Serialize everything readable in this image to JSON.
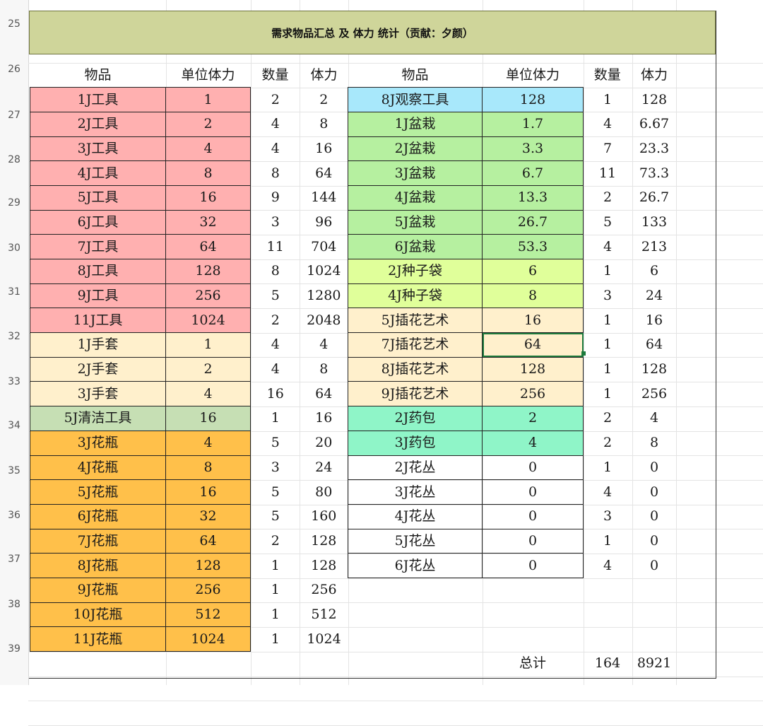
{
  "row_numbers": [
    "25",
    "26",
    "27",
    "28",
    "29",
    "30",
    "31",
    "32",
    "33",
    "34",
    "35",
    "36",
    "37",
    "38",
    "39"
  ],
  "banner_title": "需求物品汇总 及 体力 统计（贡献：夕颜）",
  "headers": [
    "物品",
    "单位体力",
    "数量",
    "体力",
    "物品",
    "单位体力",
    "数量",
    "体力"
  ],
  "colors": {
    "tool_red": "#ffb0b0",
    "glove_cream": "#fff0cc",
    "clean_green": "#c6dfb4",
    "vase_orange": "#ffc04a",
    "observe_blue": "#a8e8fb",
    "bonsai_green": "#b6f0a0",
    "seedbag_lime": "#e0ff9a",
    "flowerart_cream": "#fff0cc",
    "medicine_mint": "#8ff5c8",
    "banner_olive": "#cfd59a"
  },
  "left_rows": [
    {
      "name": "1J工具",
      "unit": "1",
      "qty": "2",
      "total": "2",
      "color": "tool_red"
    },
    {
      "name": "2J工具",
      "unit": "2",
      "qty": "4",
      "total": "8",
      "color": "tool_red"
    },
    {
      "name": "3J工具",
      "unit": "4",
      "qty": "4",
      "total": "16",
      "color": "tool_red"
    },
    {
      "name": "4J工具",
      "unit": "8",
      "qty": "8",
      "total": "64",
      "color": "tool_red"
    },
    {
      "name": "5J工具",
      "unit": "16",
      "qty": "9",
      "total": "144",
      "color": "tool_red"
    },
    {
      "name": "6J工具",
      "unit": "32",
      "qty": "3",
      "total": "96",
      "color": "tool_red"
    },
    {
      "name": "7J工具",
      "unit": "64",
      "qty": "11",
      "total": "704",
      "color": "tool_red"
    },
    {
      "name": "8J工具",
      "unit": "128",
      "qty": "8",
      "total": "1024",
      "color": "tool_red"
    },
    {
      "name": "9J工具",
      "unit": "256",
      "qty": "5",
      "total": "1280",
      "color": "tool_red"
    },
    {
      "name": "11J工具",
      "unit": "1024",
      "qty": "2",
      "total": "2048",
      "color": "tool_red"
    },
    {
      "name": "1J手套",
      "unit": "1",
      "qty": "4",
      "total": "4",
      "color": "glove_cream"
    },
    {
      "name": "2J手套",
      "unit": "2",
      "qty": "4",
      "total": "8",
      "color": "glove_cream"
    },
    {
      "name": "3J手套",
      "unit": "4",
      "qty": "16",
      "total": "64",
      "color": "glove_cream"
    },
    {
      "name": "5J清洁工具",
      "unit": "16",
      "qty": "1",
      "total": "16",
      "color": "clean_green"
    },
    {
      "name": "3J花瓶",
      "unit": "4",
      "qty": "5",
      "total": "20",
      "color": "vase_orange"
    },
    {
      "name": "4J花瓶",
      "unit": "8",
      "qty": "3",
      "total": "24",
      "color": "vase_orange"
    },
    {
      "name": "5J花瓶",
      "unit": "16",
      "qty": "5",
      "total": "80",
      "color": "vase_orange"
    },
    {
      "name": "6J花瓶",
      "unit": "32",
      "qty": "5",
      "total": "160",
      "color": "vase_orange"
    },
    {
      "name": "7J花瓶",
      "unit": "64",
      "qty": "2",
      "total": "128",
      "color": "vase_orange"
    },
    {
      "name": "8J花瓶",
      "unit": "128",
      "qty": "1",
      "total": "128",
      "color": "vase_orange"
    },
    {
      "name": "9J花瓶",
      "unit": "256",
      "qty": "1",
      "total": "256",
      "color": "vase_orange"
    },
    {
      "name": "10J花瓶",
      "unit": "512",
      "qty": "1",
      "total": "512",
      "color": "vase_orange"
    },
    {
      "name": "11J花瓶",
      "unit": "1024",
      "qty": "1",
      "total": "1024",
      "color": "vase_orange"
    }
  ],
  "right_rows": [
    {
      "name": "8J观察工具",
      "unit": "128",
      "qty": "1",
      "total": "128",
      "color": "observe_blue"
    },
    {
      "name": "1J盆栽",
      "unit": "1.7",
      "qty": "4",
      "total": "6.67",
      "color": "bonsai_green"
    },
    {
      "name": "2J盆栽",
      "unit": "3.3",
      "qty": "7",
      "total": "23.3",
      "color": "bonsai_green"
    },
    {
      "name": "3J盆栽",
      "unit": "6.7",
      "qty": "11",
      "total": "73.3",
      "color": "bonsai_green"
    },
    {
      "name": "4J盆栽",
      "unit": "13.3",
      "qty": "2",
      "total": "26.7",
      "color": "bonsai_green"
    },
    {
      "name": "5J盆栽",
      "unit": "26.7",
      "qty": "5",
      "total": "133",
      "color": "bonsai_green"
    },
    {
      "name": "6J盆栽",
      "unit": "53.3",
      "qty": "4",
      "total": "213",
      "color": "bonsai_green"
    },
    {
      "name": "2J种子袋",
      "unit": "6",
      "qty": "1",
      "total": "6",
      "color": "seedbag_lime"
    },
    {
      "name": "4J种子袋",
      "unit": "8",
      "qty": "3",
      "total": "24",
      "color": "seedbag_lime"
    },
    {
      "name": "5J插花艺术",
      "unit": "16",
      "qty": "1",
      "total": "16",
      "color": "flowerart_cream"
    },
    {
      "name": "7J插花艺术",
      "unit": "64",
      "qty": "1",
      "total": "64",
      "color": "flowerart_cream",
      "selected": true
    },
    {
      "name": "8J插花艺术",
      "unit": "128",
      "qty": "1",
      "total": "128",
      "color": "flowerart_cream"
    },
    {
      "name": "9J插花艺术",
      "unit": "256",
      "qty": "1",
      "total": "256",
      "color": "flowerart_cream"
    },
    {
      "name": "2J药包",
      "unit": "2",
      "qty": "2",
      "total": "4",
      "color": "medicine_mint"
    },
    {
      "name": "3J药包",
      "unit": "4",
      "qty": "2",
      "total": "8",
      "color": "medicine_mint"
    },
    {
      "name": "2J花丛",
      "unit": "0",
      "qty": "1",
      "total": "0",
      "color": null
    },
    {
      "name": "3J花丛",
      "unit": "0",
      "qty": "4",
      "total": "0",
      "color": null
    },
    {
      "name": "4J花丛",
      "unit": "0",
      "qty": "3",
      "total": "0",
      "color": null
    },
    {
      "name": "5J花丛",
      "unit": "0",
      "qty": "1",
      "total": "0",
      "color": null
    },
    {
      "name": "6J花丛",
      "unit": "0",
      "qty": "4",
      "total": "0",
      "color": null
    }
  ],
  "summary": {
    "label": "总计",
    "qty": "164",
    "total": "8921"
  }
}
